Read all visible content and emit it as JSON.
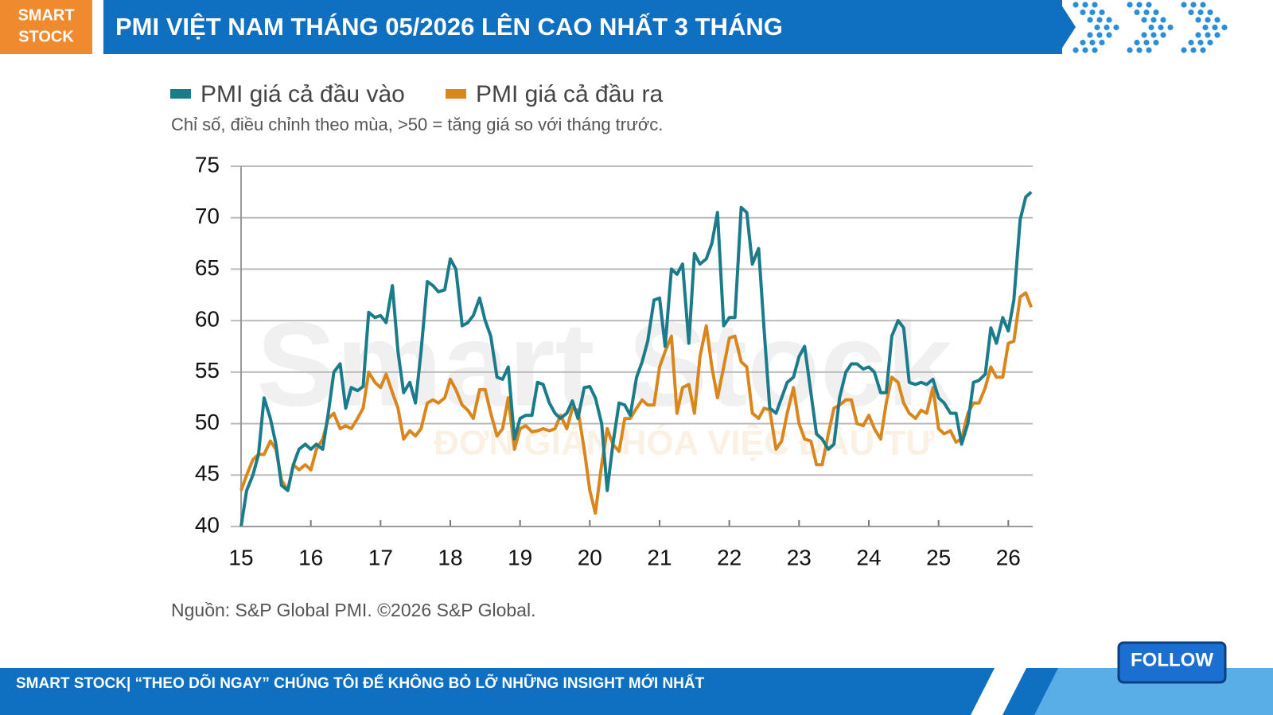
{
  "header": {
    "logo_line1": "SMART",
    "logo_line2": "STOCK",
    "title": "PMI VIỆT NAM THÁNG 05/2026 LÊN CAO NHẤT 3 THÁNG"
  },
  "chart_data": {
    "type": "line",
    "subtitle": "Chỉ số, điều chỉnh theo mùa, >50 = tăng giá so với tháng trước.",
    "source": "Nguồn: S&P Global PMI. ©2026 S&P Global.",
    "watermark": "Smart Stock",
    "watermark_tagline": "ĐƠN GIẢN HÓA VIỆC ĐẦU TƯ",
    "xlim": [
      15,
      26.35
    ],
    "xticks": [
      15,
      16,
      17,
      18,
      19,
      20,
      21,
      22,
      23,
      24,
      25,
      26
    ],
    "ylim": [
      40,
      75
    ],
    "yticks": [
      40,
      45,
      50,
      55,
      60,
      65,
      70,
      75
    ],
    "grid": true,
    "x": [
      15,
      15.08,
      15.17,
      15.25,
      15.33,
      15.42,
      15.5,
      15.58,
      15.67,
      15.75,
      15.83,
      15.92,
      16,
      16.08,
      16.17,
      16.25,
      16.33,
      16.42,
      16.5,
      16.58,
      16.67,
      16.75,
      16.83,
      16.92,
      17,
      17.08,
      17.17,
      17.25,
      17.33,
      17.42,
      17.5,
      17.58,
      17.67,
      17.75,
      17.83,
      17.92,
      18,
      18.08,
      18.17,
      18.25,
      18.33,
      18.42,
      18.5,
      18.58,
      18.67,
      18.75,
      18.83,
      18.92,
      19,
      19.08,
      19.17,
      19.25,
      19.33,
      19.42,
      19.5,
      19.58,
      19.67,
      19.75,
      19.83,
      19.92,
      20,
      20.08,
      20.17,
      20.25,
      20.33,
      20.42,
      20.5,
      20.58,
      20.67,
      20.75,
      20.83,
      20.92,
      21,
      21.08,
      21.17,
      21.25,
      21.33,
      21.42,
      21.5,
      21.58,
      21.67,
      21.75,
      21.83,
      21.92,
      22,
      22.08,
      22.17,
      22.25,
      22.33,
      22.42,
      22.5,
      22.58,
      22.67,
      22.75,
      22.83,
      22.92,
      23,
      23.08,
      23.17,
      23.25,
      23.33,
      23.42,
      23.5,
      23.58,
      23.67,
      23.75,
      23.83,
      23.92,
      24,
      24.08,
      24.17,
      24.25,
      24.33,
      24.42,
      24.5,
      24.58,
      24.67,
      24.75,
      24.83,
      24.92,
      25,
      25.08,
      25.17,
      25.25,
      25.33,
      25.42,
      25.5,
      25.58,
      25.67,
      25.75,
      25.83,
      25.92,
      26,
      26.08,
      26.17,
      26.25,
      26.33
    ],
    "series": [
      {
        "name": "PMI giá cả đầu vào",
        "color": "#1a7b8a",
        "values": [
          40,
          43.5,
          45,
          47,
          52.5,
          50.5,
          48,
          44,
          43.5,
          46,
          47.5,
          48,
          47.5,
          48,
          47.5,
          51,
          55,
          55.8,
          51.5,
          53.5,
          53.2,
          53.6,
          60.8,
          60.3,
          60.5,
          59.8,
          63.4,
          57,
          53,
          54,
          52,
          57,
          63.8,
          63.4,
          62.8,
          63,
          66,
          65,
          59.5,
          59.8,
          60.5,
          62.2,
          60,
          58.5,
          54.5,
          54.3,
          55.5,
          48.5,
          50.5,
          50.8,
          50.8,
          54,
          53.8,
          52,
          51,
          50.5,
          51,
          52.2,
          50.5,
          53.5,
          53.6,
          52.5,
          50,
          43.5,
          48,
          52,
          51.8,
          50.8,
          54.5,
          56,
          58,
          62,
          62.2,
          57.5,
          65,
          64.5,
          65.5,
          57.8,
          66.5,
          65.5,
          66,
          67.5,
          70.5,
          59.5,
          60.3,
          60.3,
          71,
          70.5,
          65.5,
          67,
          59,
          51.5,
          51,
          52.5,
          54,
          54.5,
          56.5,
          57.5,
          53,
          49,
          48.5,
          47.5,
          48,
          52.5,
          55,
          55.8,
          55.8,
          55.3,
          55.5,
          55,
          53,
          53,
          58.5,
          60,
          59.3,
          54,
          53.8,
          54,
          53.8,
          54.3,
          52.5,
          52,
          51,
          51,
          48,
          50,
          54,
          54.2,
          54.8,
          59.3,
          57.8,
          60.3,
          59,
          62,
          69.8,
          72,
          72.5
        ]
      },
      {
        "name": "PMI giá cả đầu ra",
        "color": "#d9861c",
        "values": [
          43.5,
          45,
          46.5,
          47,
          47,
          48.3,
          47.5,
          44.5,
          43.5,
          46,
          45.5,
          46,
          45.5,
          47.5,
          48.5,
          50.5,
          51,
          49.5,
          49.8,
          49.5,
          50.5,
          51.5,
          55,
          54,
          53.5,
          54.8,
          53,
          51.5,
          48.5,
          49.3,
          48.8,
          49.5,
          52,
          52.3,
          52,
          52.5,
          54.3,
          53.3,
          51.8,
          51.3,
          50.5,
          53.3,
          53.3,
          51,
          48.8,
          49.5,
          52.5,
          47.5,
          49.5,
          49.8,
          49.2,
          49.3,
          49.5,
          49.3,
          49.5,
          50.8,
          49.5,
          51.5,
          51.3,
          47.5,
          43.5,
          41.3,
          46,
          49.5,
          48,
          47.3,
          50.5,
          50.5,
          51.5,
          52.3,
          51.8,
          51.8,
          55.5,
          57,
          58.5,
          51,
          53.5,
          53.8,
          51,
          56.5,
          59.5,
          55.5,
          52.5,
          55.5,
          58.3,
          58.5,
          56,
          55.5,
          51,
          50.5,
          51.5,
          51.3,
          47.5,
          48.3,
          51,
          53.5,
          50,
          48.5,
          48.3,
          46,
          46,
          49,
          51.5,
          51.8,
          52.3,
          52.3,
          50,
          49.8,
          50.8,
          49.5,
          48.5,
          52,
          54.5,
          54,
          52,
          51,
          50.5,
          51.3,
          51,
          53.5,
          49.5,
          49,
          49.3,
          48.2,
          48.5,
          51,
          52,
          52,
          53.5,
          55.5,
          54.5,
          54.5,
          57.8,
          58,
          62.3,
          62.7,
          61.3
        ]
      }
    ]
  },
  "footer": {
    "text": "SMART STOCK| “THEO DÕI NGAY” CHÚNG TÔI ĐỂ KHÔNG BỎ LỠ NHỮNG INSIGHT MỚI NHẤT",
    "button": "FOLLOW"
  }
}
